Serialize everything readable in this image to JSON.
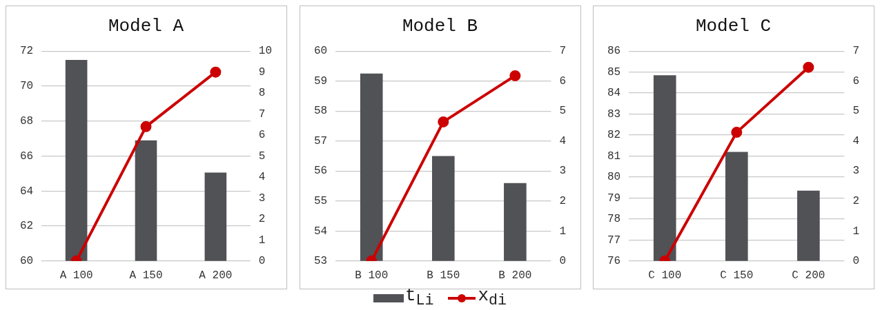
{
  "chart_data": [
    {
      "type": "bar",
      "title": "Model A",
      "categories": [
        "A 100",
        "A 150",
        "A 200"
      ],
      "series": [
        {
          "name": "t$_{Li}$",
          "color": "#505256",
          "values": [
            71.5,
            66.9,
            65.05
          ]
        },
        {
          "name": "x$_{di}$",
          "type": "line",
          "axis": "y2",
          "color": "#cc0000",
          "values": [
            0,
            6.4,
            9.0
          ]
        }
      ],
      "ylim": [
        60,
        72
      ],
      "yticks": [
        60,
        62,
        64,
        66,
        68,
        70,
        72
      ],
      "y2lim": [
        0,
        10
      ],
      "y2ticks": [
        0,
        1,
        2,
        3,
        4,
        5,
        6,
        7,
        8,
        9,
        10
      ],
      "grid": "y",
      "marker": "circle",
      "legend": "bottom"
    },
    {
      "type": "bar",
      "title": "Model B",
      "categories": [
        "B 100",
        "B 150",
        "B 200"
      ],
      "series": [
        {
          "color": "#505256",
          "values": [
            59.25,
            56.5,
            55.6
          ]
        },
        {
          "type": "line",
          "axis": "y2",
          "color": "#cc0000",
          "values": [
            0,
            4.64,
            6.18
          ]
        }
      ],
      "ylim": [
        53,
        60
      ],
      "yticks": [
        53,
        54,
        55,
        56,
        57,
        58,
        59,
        60
      ],
      "y2lim": [
        0,
        7
      ],
      "y2ticks": [
        0,
        1,
        2,
        3,
        4,
        5,
        6,
        7
      ],
      "grid": "y",
      "marker": "circle"
    },
    {
      "type": "bar",
      "title": "Model C",
      "categories": [
        "C 100",
        "C 150",
        "C 200"
      ],
      "series": [
        {
          "color": "#505256",
          "values": [
            84.85,
            81.2,
            79.35
          ]
        },
        {
          "type": "line",
          "axis": "y2",
          "color": "#cc0000",
          "values": [
            0,
            4.29,
            6.46
          ]
        }
      ],
      "ylim": [
        76,
        86
      ],
      "yticks": [
        76,
        77,
        78,
        79,
        80,
        81,
        82,
        83,
        84,
        85,
        86
      ],
      "y2lim": [
        0,
        7
      ],
      "y2ticks": [
        0,
        1,
        2,
        3,
        4,
        5,
        6,
        7
      ],
      "grid": "y",
      "marker": "circle"
    }
  ]
}
